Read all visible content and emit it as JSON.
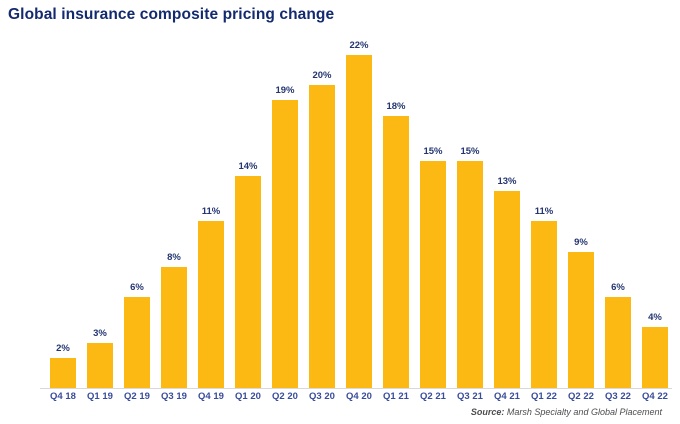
{
  "chart_data": {
    "type": "bar",
    "title": "Global insurance composite pricing change",
    "categories": [
      "Q4 18",
      "Q1 19",
      "Q2 19",
      "Q3 19",
      "Q4 19",
      "Q1 20",
      "Q2 20",
      "Q3 20",
      "Q4 20",
      "Q1 21",
      "Q2 21",
      "Q3 21",
      "Q4 21",
      "Q1 22",
      "Q2 22",
      "Q3 22",
      "Q4 22"
    ],
    "values": [
      2,
      3,
      6,
      8,
      11,
      14,
      19,
      20,
      22,
      18,
      15,
      15,
      13,
      11,
      9,
      6,
      4
    ],
    "value_labels": [
      "2%",
      "3%",
      "6%",
      "8%",
      "11%",
      "14%",
      "19%",
      "20%",
      "22%",
      "18%",
      "15%",
      "15%",
      "13%",
      "11%",
      "9%",
      "6%",
      "4%"
    ],
    "xlabel": "",
    "ylabel": "",
    "ylim": [
      0,
      22
    ],
    "grid": false,
    "legend": false,
    "bar_color": "#fcb813",
    "title_color": "#142a6e",
    "value_label_color": "#243672",
    "tick_label_color": "#3a4d9b",
    "baseline_color": "#d9d9d9"
  },
  "source": {
    "label": "Source:",
    "text": " Marsh Specialty and Global Placement"
  }
}
